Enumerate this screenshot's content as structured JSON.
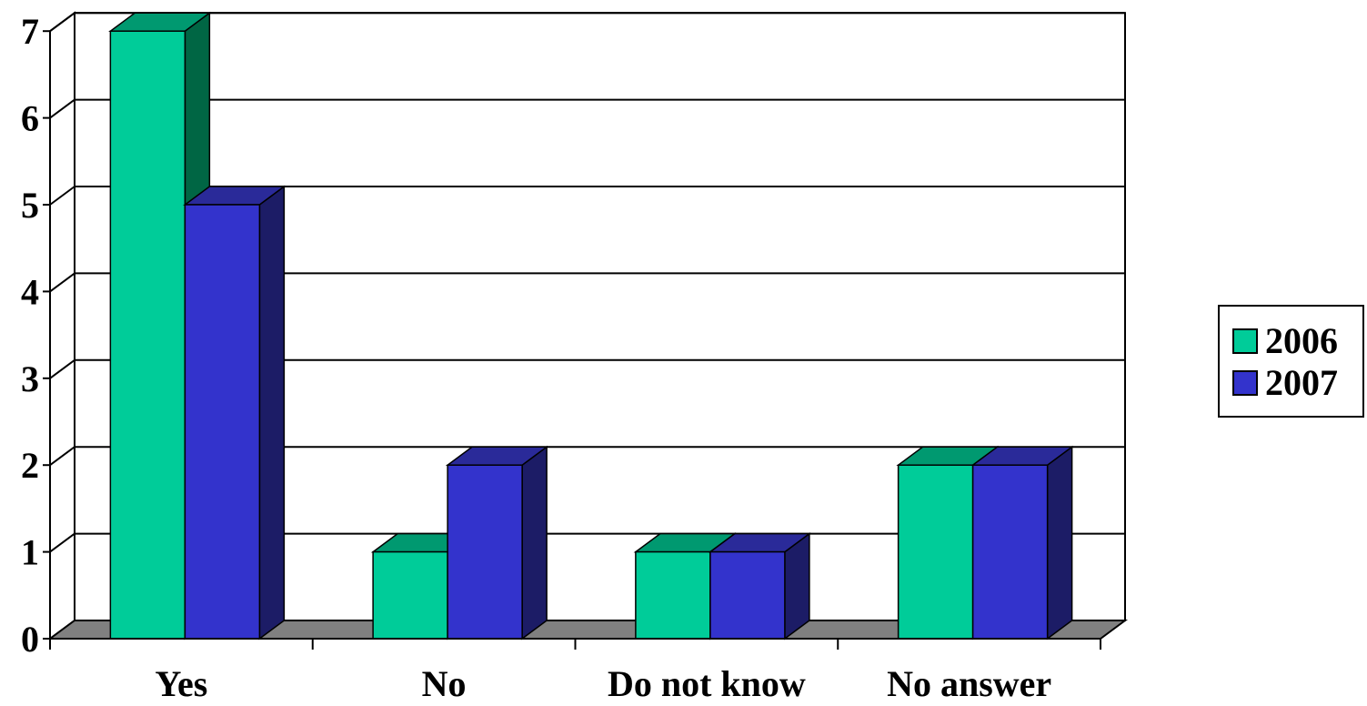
{
  "chart_data": {
    "type": "bar",
    "style": "3d-clustered-column",
    "categories": [
      "Yes",
      "No",
      "Do not know",
      "No answer"
    ],
    "series": [
      {
        "name": "2006",
        "values": [
          7,
          1,
          1,
          2
        ],
        "color": "#00CC99",
        "side_color": "#006644",
        "top_color": "#009970"
      },
      {
        "name": "2007",
        "values": [
          5,
          2,
          1,
          2
        ],
        "color": "#3333CC",
        "side_color": "#1C1C66",
        "top_color": "#2A2A99"
      }
    ],
    "ylim": [
      0,
      7
    ],
    "yticks": [
      "0",
      "1",
      "2",
      "3",
      "4",
      "5",
      "6",
      "7"
    ],
    "grid": true,
    "floor_color": "#808080",
    "legend_position": "right"
  }
}
